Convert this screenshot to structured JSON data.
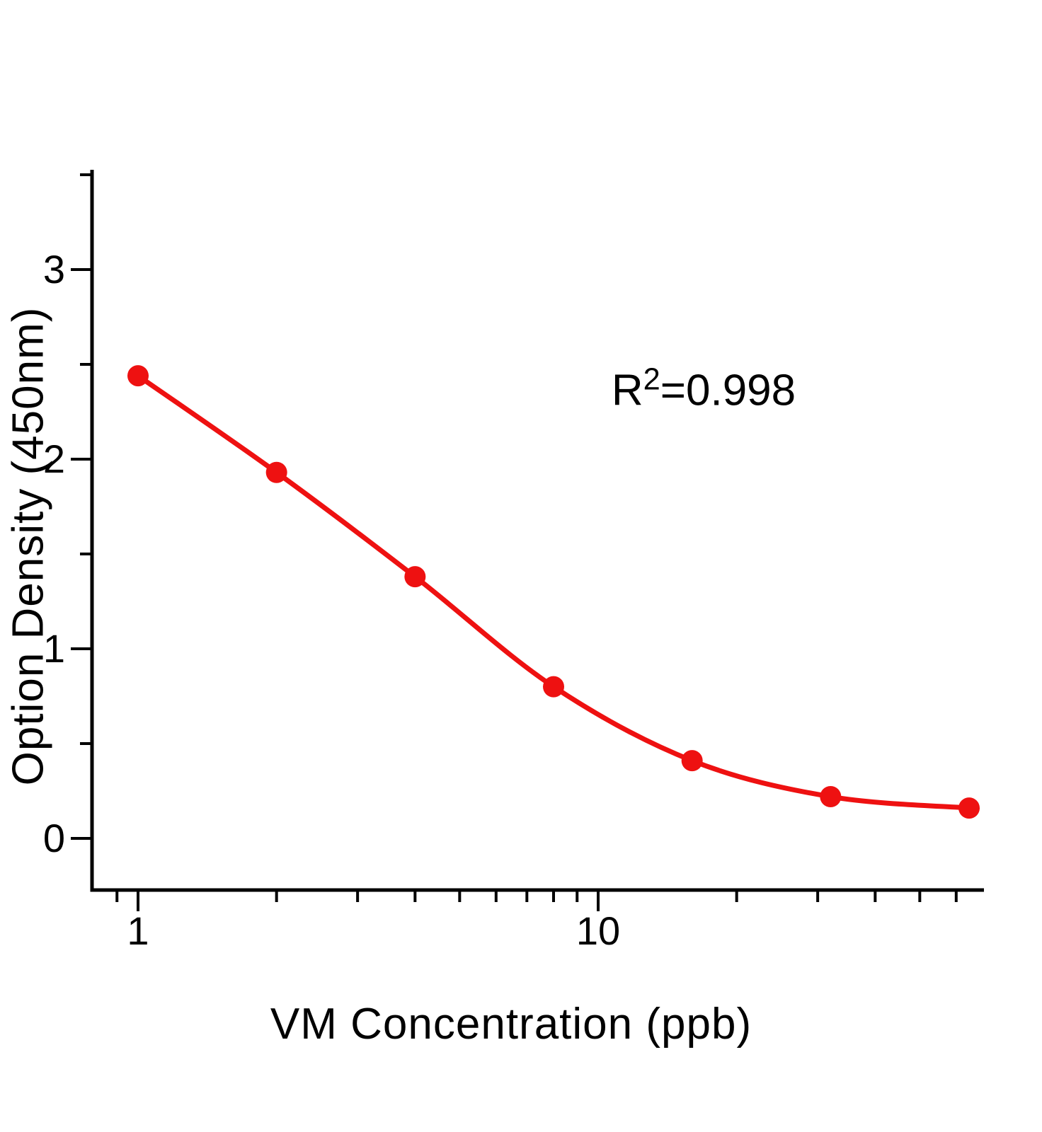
{
  "figure": {
    "background": "#ffffff",
    "accent_color": "#ee1111",
    "axis_color": "#000000"
  },
  "chart_data": {
    "type": "scatter",
    "x": [
      1,
      2,
      4,
      8,
      16,
      32,
      64
    ],
    "y": [
      2.44,
      1.93,
      1.38,
      0.8,
      0.41,
      0.22,
      0.16
    ],
    "curve": "smooth decreasing fit through all points",
    "title": "",
    "xlabel": "VM Concentration (ppb)",
    "ylabel": "Option Density (450nm)",
    "x_scale": "log",
    "x_range": [
      0.79,
      69
    ],
    "y_range": [
      -0.27,
      3.53
    ],
    "x_major_ticks": [
      1,
      10
    ],
    "x_tick_labels": [
      "1",
      "10"
    ],
    "x_minor_ticks": [
      0.9,
      2,
      3,
      4,
      5,
      6,
      7,
      8,
      9,
      20,
      30,
      40,
      50,
      60
    ],
    "y_major_ticks": [
      0,
      1,
      2,
      3
    ],
    "y_tick_labels": [
      "0",
      "1",
      "2",
      "3"
    ],
    "y_minor_step": 0.5,
    "grid": false,
    "legend": false,
    "annotation": {
      "base": "R",
      "superscript": "2",
      "suffix": "=0.998"
    }
  }
}
